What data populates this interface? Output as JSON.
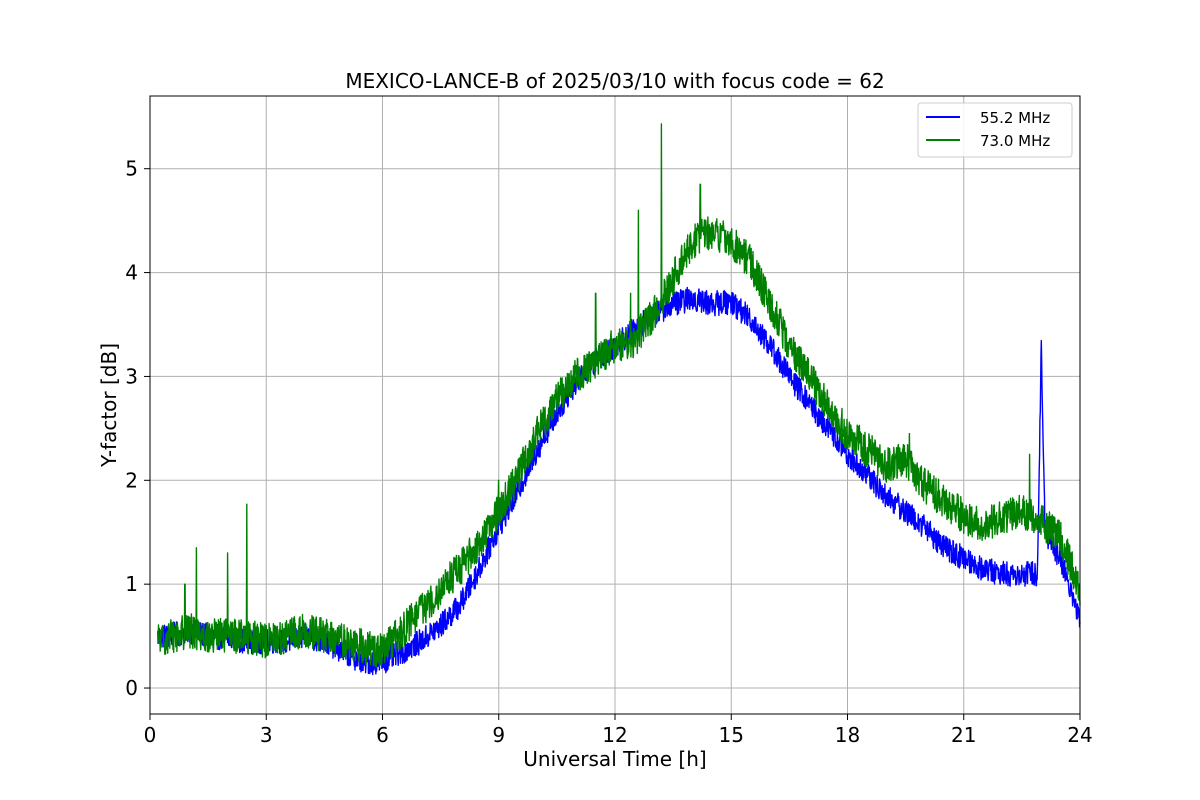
{
  "chart_data": {
    "type": "line",
    "title": "MEXICO-LANCE-B of 2025/03/10 with focus code = 62",
    "xlabel": "Universal Time [h]",
    "ylabel": "Y-factor [dB]",
    "xlim": [
      0,
      24
    ],
    "ylim": [
      -0.25,
      5.7
    ],
    "xticks": [
      0,
      3,
      6,
      9,
      12,
      15,
      18,
      21,
      24
    ],
    "yticks": [
      0,
      1,
      2,
      3,
      4,
      5
    ],
    "grid": true,
    "legend_position": "top-right",
    "series": [
      {
        "name": "55.2 MHz",
        "color": "#0000ff",
        "x": [
          0.2,
          0.5,
          1.0,
          1.5,
          2.0,
          2.5,
          3.0,
          3.5,
          4.0,
          4.5,
          5.0,
          5.5,
          6.0,
          6.5,
          7.0,
          7.5,
          8.0,
          8.5,
          9.0,
          9.5,
          10.0,
          10.5,
          11.0,
          11.5,
          12.0,
          12.5,
          13.0,
          13.5,
          14.0,
          14.5,
          15.0,
          15.5,
          16.0,
          16.5,
          17.0,
          17.5,
          18.0,
          18.5,
          19.0,
          19.5,
          20.0,
          20.5,
          21.0,
          21.5,
          22.0,
          22.5,
          22.9,
          23.0,
          23.1,
          23.5,
          24.0
        ],
        "y": [
          0.5,
          0.5,
          0.55,
          0.5,
          0.48,
          0.45,
          0.45,
          0.45,
          0.5,
          0.45,
          0.35,
          0.25,
          0.25,
          0.35,
          0.45,
          0.6,
          0.8,
          1.15,
          1.55,
          1.9,
          2.3,
          2.65,
          2.95,
          3.15,
          3.3,
          3.45,
          3.6,
          3.7,
          3.75,
          3.7,
          3.72,
          3.55,
          3.3,
          3.0,
          2.75,
          2.5,
          2.25,
          2.05,
          1.85,
          1.7,
          1.55,
          1.35,
          1.25,
          1.15,
          1.1,
          1.1,
          1.1,
          3.3,
          1.5,
          1.25,
          0.65
        ],
        "noise": 0.12
      },
      {
        "name": "73.0 MHz",
        "color": "#008000",
        "x": [
          0.2,
          0.5,
          1.0,
          1.5,
          2.0,
          2.5,
          3.0,
          3.5,
          4.0,
          4.5,
          5.0,
          5.5,
          6.0,
          6.5,
          7.0,
          7.5,
          8.0,
          8.5,
          9.0,
          9.5,
          10.0,
          10.5,
          11.0,
          11.5,
          12.0,
          12.5,
          13.0,
          13.5,
          14.0,
          14.5,
          15.0,
          15.5,
          16.0,
          16.5,
          17.0,
          17.5,
          18.0,
          18.5,
          19.0,
          19.5,
          20.0,
          20.5,
          21.0,
          21.5,
          22.0,
          22.5,
          23.0,
          23.5,
          24.0
        ],
        "y": [
          0.45,
          0.5,
          0.55,
          0.5,
          0.5,
          0.5,
          0.45,
          0.5,
          0.55,
          0.5,
          0.45,
          0.4,
          0.35,
          0.55,
          0.75,
          0.95,
          1.15,
          1.4,
          1.7,
          2.05,
          2.45,
          2.8,
          3.0,
          3.15,
          3.3,
          3.35,
          3.6,
          3.95,
          4.3,
          4.4,
          4.3,
          4.1,
          3.7,
          3.3,
          3.0,
          2.7,
          2.45,
          2.3,
          2.15,
          2.2,
          1.95,
          1.8,
          1.65,
          1.55,
          1.65,
          1.7,
          1.6,
          1.45,
          0.95
        ],
        "noise": 0.17,
        "spikes": [
          [
            0.9,
            1.0
          ],
          [
            1.2,
            1.35
          ],
          [
            2.0,
            1.3
          ],
          [
            2.5,
            1.77
          ],
          [
            9.0,
            2.0
          ],
          [
            11.5,
            3.8
          ],
          [
            12.4,
            3.8
          ],
          [
            12.6,
            4.6
          ],
          [
            13.2,
            5.43
          ],
          [
            14.2,
            4.85
          ],
          [
            19.6,
            2.45
          ],
          [
            22.7,
            2.25
          ]
        ]
      }
    ]
  }
}
